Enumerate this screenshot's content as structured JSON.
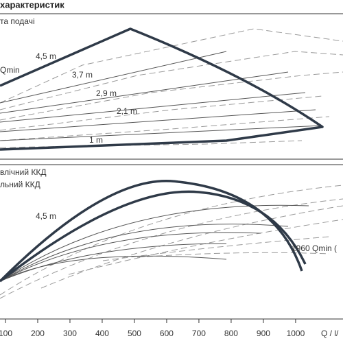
{
  "chart_data": {
    "type": "line",
    "title": "характеристик",
    "top_panel_label": "та подачі",
    "top_annotations": [
      "Qmin",
      "4,5 m",
      "3,7 m",
      "2,9 m",
      "2,1 m",
      "1 m"
    ],
    "bottom_panel_labels": [
      "влічний ККД",
      "льний ККД"
    ],
    "bottom_annotations": [
      "4,5 m",
      "1960 Qmin ("
    ],
    "xlabel": "Q / l/",
    "xlim": [
      83,
      1147
    ],
    "xticks": [
      100,
      200,
      300,
      400,
      500,
      600,
      700,
      800,
      900,
      1000
    ]
  }
}
